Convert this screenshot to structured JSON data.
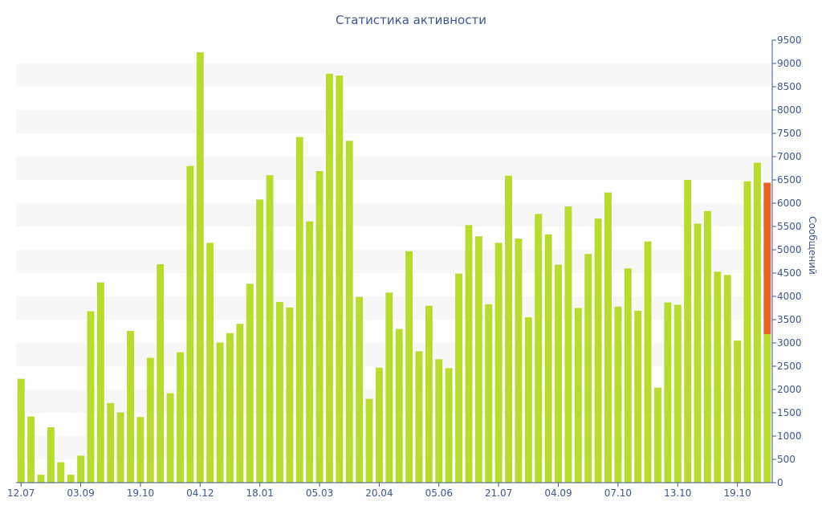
{
  "chart_data": {
    "type": "bar",
    "title": "Статистика активности",
    "ylabel": "Сообщений",
    "xlabel": "",
    "ylim": [
      0,
      9500
    ],
    "y_ticks": [
      0,
      500,
      1000,
      1500,
      2000,
      2500,
      3000,
      3500,
      4000,
      4500,
      5000,
      5500,
      6000,
      6500,
      7000,
      7500,
      8000,
      8500,
      9000,
      9500
    ],
    "y_axis_side": "right",
    "grid": "alternating horizontal bands",
    "x_tick_labels": [
      {
        "index": 0,
        "label": "12.07"
      },
      {
        "index": 6,
        "label": "03.09"
      },
      {
        "index": 12,
        "label": "19.10"
      },
      {
        "index": 18,
        "label": "04.12"
      },
      {
        "index": 24,
        "label": "18.01"
      },
      {
        "index": 30,
        "label": "05.03"
      },
      {
        "index": 36,
        "label": "20.04"
      },
      {
        "index": 42,
        "label": "05.06"
      },
      {
        "index": 48,
        "label": "21.07"
      },
      {
        "index": 54,
        "label": "04.09"
      },
      {
        "index": 60,
        "label": "07.10"
      },
      {
        "index": 66,
        "label": "13.10"
      },
      {
        "index": 72,
        "label": "19.10"
      }
    ],
    "series": [
      {
        "values": [
          2230,
          1420,
          170,
          1190,
          440,
          170,
          580,
          3680,
          4300,
          1710,
          1510,
          3260,
          1410,
          2680,
          4690,
          1920,
          2800,
          6800,
          9240,
          5150,
          3010,
          3210,
          3410,
          4270,
          6080,
          6600,
          3880,
          3760,
          7420,
          5610,
          6690,
          8780,
          8740,
          7340,
          3990,
          1800,
          2470,
          4080,
          3300,
          4970,
          2820,
          3800,
          2650,
          2460,
          4490,
          5530,
          5290,
          3830,
          5150,
          6590,
          5240,
          3550,
          5770,
          5330,
          4680,
          5930,
          3750,
          4910,
          5670,
          6230,
          3780,
          4600,
          3690,
          5180,
          2040,
          3870,
          3820,
          6500,
          5560,
          5830,
          4530,
          4460,
          3050,
          6470,
          6870,
          3190
        ],
        "color": "#b8dc2e"
      },
      {
        "values": [
          null,
          null,
          null,
          null,
          null,
          null,
          null,
          null,
          null,
          null,
          null,
          null,
          null,
          null,
          null,
          null,
          null,
          null,
          null,
          null,
          null,
          null,
          null,
          null,
          null,
          null,
          null,
          null,
          null,
          null,
          null,
          null,
          null,
          null,
          null,
          null,
          null,
          null,
          null,
          null,
          null,
          null,
          null,
          null,
          null,
          null,
          null,
          null,
          null,
          null,
          null,
          null,
          null,
          null,
          null,
          null,
          null,
          null,
          null,
          null,
          null,
          null,
          null,
          null,
          null,
          null,
          null,
          null,
          null,
          null,
          null,
          null,
          null,
          null,
          null,
          3250
        ],
        "color": "#e8622a",
        "stacked_on_previous": true
      }
    ]
  }
}
